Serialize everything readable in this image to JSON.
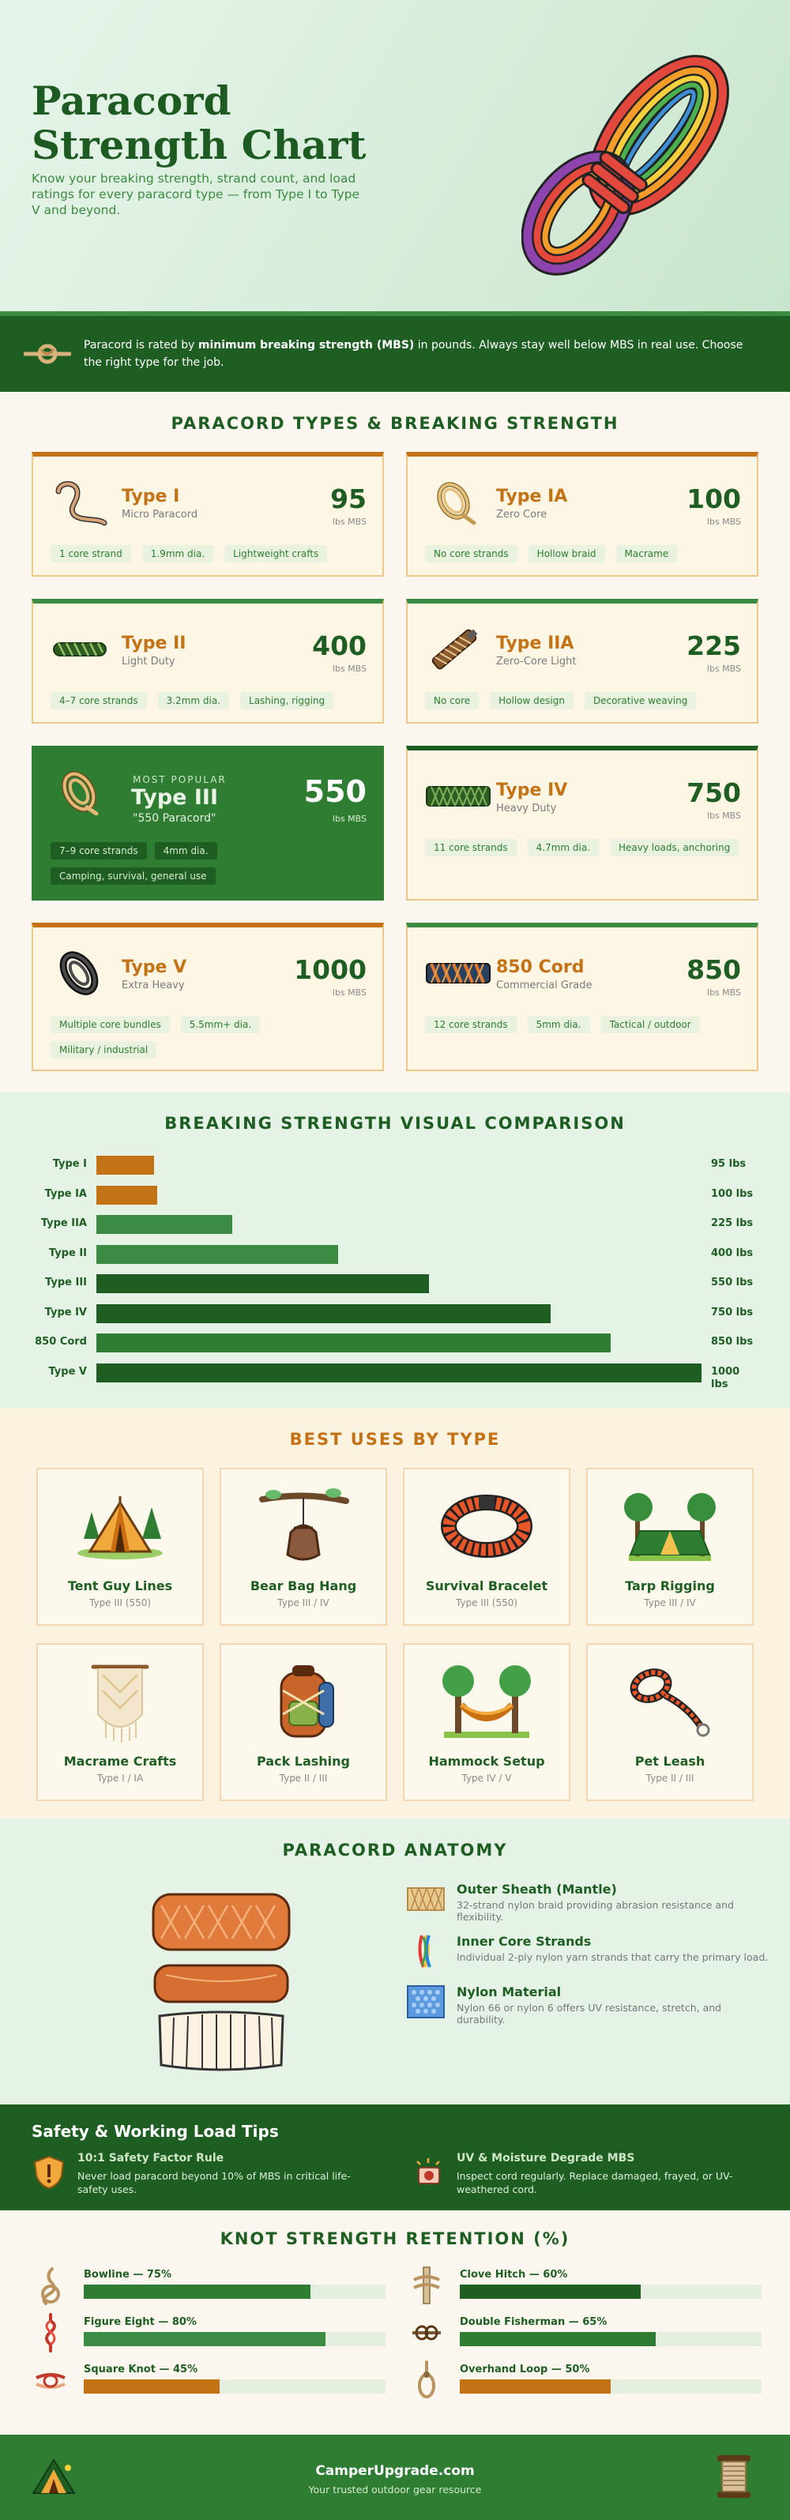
{
  "hero": {
    "title_line1": "Paracord",
    "title_line2": "Strength Chart",
    "subtitle": "Know your breaking strength, strand count, and load ratings for every paracord type — from Type I to Type V and beyond.",
    "art_icon": "coiled-rope-icon"
  },
  "info": {
    "icon": "knot-icon",
    "text_before": "Paracord is rated by ",
    "text_bold": "minimum breaking strength (MBS)",
    "text_after": " in pounds. Always stay well below MBS in real use. Choose the right type for the job."
  },
  "types": {
    "title": "PARACORD TYPES & BREAKING STRENGTH",
    "unit": "lbs MBS",
    "items": [
      {
        "name": "Type I",
        "desc": "Micro Paracord",
        "value": "95",
        "chips": [
          "1 core strand",
          "1.9mm dia.",
          "Lightweight crafts"
        ],
        "icon": "thin-cord-loop-icon"
      },
      {
        "name": "Type IA",
        "desc": "Zero Core",
        "value": "100",
        "chips": [
          "No core strands",
          "Hollow braid",
          "Macrame"
        ],
        "icon": "coiled-cord-icon"
      },
      {
        "name": "Type II",
        "desc": "Light Duty",
        "value": "400",
        "chips": [
          "4–7 core strands",
          "3.2mm dia.",
          "Lashing, rigging"
        ],
        "icon": "braided-cord-icon"
      },
      {
        "name": "Type IIA",
        "desc": "Zero-Core Light",
        "value": "225",
        "chips": [
          "No core",
          "Hollow design",
          "Decorative weaving"
        ],
        "icon": "wrapped-handle-icon"
      },
      {
        "name": "Type III",
        "label": "MOST POPULAR",
        "desc": "\"550 Paracord\"",
        "value": "550",
        "chips": [
          "7–9 core strands",
          "4mm dia.",
          "Camping, survival, general use"
        ],
        "icon": "coiled-cord-icon"
      },
      {
        "name": "Type IV",
        "desc": "Heavy Duty",
        "value": "750",
        "chips": [
          "11 core strands",
          "4.7mm dia.",
          "Heavy loads, anchoring"
        ],
        "icon": "braided-cord-icon"
      },
      {
        "name": "Type V",
        "desc": "Extra Heavy",
        "value": "1000",
        "chips": [
          "Multiple core bundles",
          "5.5mm+ dia.",
          "Military / industrial"
        ],
        "icon": "coiled-cord-icon"
      },
      {
        "name": "850 Cord",
        "desc": "Commercial Grade",
        "value": "850",
        "chips": [
          "12 core strands",
          "5mm dia.",
          "Tactical / outdoor"
        ],
        "icon": "braided-cord-icon"
      }
    ]
  },
  "comparison": {
    "title": "BREAKING STRENGTH VISUAL COMPARISON",
    "max": 1000,
    "rows": [
      {
        "label": "Type I",
        "value": 95,
        "text": "95 lbs",
        "color": "#c47216"
      },
      {
        "label": "Type IA",
        "value": 100,
        "text": "100 lbs",
        "color": "#c47216"
      },
      {
        "label": "Type IIA",
        "value": 225,
        "text": "225 lbs",
        "color": "#3c8b43"
      },
      {
        "label": "Type II",
        "value": 400,
        "text": "400 lbs",
        "color": "#3c8b43"
      },
      {
        "label": "Type III",
        "value": 550,
        "text": "550 lbs",
        "color": "#1f5e23"
      },
      {
        "label": "Type IV",
        "value": 750,
        "text": "750 lbs",
        "color": "#1f5e23"
      },
      {
        "label": "850 Cord",
        "value": 850,
        "text": "850 lbs",
        "color": "#2e7d32"
      },
      {
        "label": "Type V",
        "value": 1000,
        "text": "1000 lbs",
        "color": "#1f5e23"
      }
    ]
  },
  "uses": {
    "title": "BEST USES BY TYPE",
    "items": [
      {
        "name": "Tent Guy Lines",
        "type": "Type III (550)",
        "icon": "tent-icon"
      },
      {
        "name": "Bear Bag Hang",
        "type": "Type III / IV",
        "icon": "bear-bag-icon"
      },
      {
        "name": "Survival Bracelet",
        "type": "Type III (550)",
        "icon": "bracelet-icon"
      },
      {
        "name": "Tarp Rigging",
        "type": "Type III / IV",
        "icon": "tarp-icon"
      },
      {
        "name": "Macrame Crafts",
        "type": "Type I / IA",
        "icon": "macrame-icon"
      },
      {
        "name": "Pack Lashing",
        "type": "Type II / III",
        "icon": "backpack-icon"
      },
      {
        "name": "Hammock Setup",
        "type": "Type IV / V",
        "icon": "hammock-icon"
      },
      {
        "name": "Pet Leash",
        "type": "Type II / III",
        "icon": "leash-icon"
      }
    ]
  },
  "anatomy": {
    "title": "PARACORD ANATOMY",
    "art_icon": "cord-cross-section-icon",
    "items": [
      {
        "name": "Outer Sheath (Mantle)",
        "desc": "32-strand nylon braid providing abrasion resistance and flexibility.",
        "icon": "sheath-swatch-icon"
      },
      {
        "name": "Inner Core Strands",
        "desc": "Individual 2-ply nylon yarn strands that carry the primary load.",
        "icon": "core-strands-icon"
      },
      {
        "name": "Nylon Material",
        "desc": "Nylon 66 or nylon 6 offers UV resistance, stretch, and durability.",
        "icon": "nylon-weave-icon"
      }
    ]
  },
  "safety": {
    "title": "Safety & Working Load Tips",
    "tips": [
      {
        "name": "10:1 Safety Factor Rule",
        "desc": "Never load paracord beyond 10% of MBS in critical life-safety uses.",
        "icon": "shield-warning-icon"
      },
      {
        "name": "UV & Moisture Degrade MBS",
        "desc": "Inspect cord regularly. Replace damaged, frayed, or UV-weathered cord.",
        "icon": "sun-moisture-icon"
      }
    ]
  },
  "knots": {
    "title": "KNOT STRENGTH RETENTION (%)",
    "items": [
      {
        "label": "Bowline — 75%",
        "value": 75,
        "color": "#2e7d32",
        "icon": "bowline-knot-icon"
      },
      {
        "label": "Clove Hitch — 60%",
        "value": 60,
        "color": "#1f5e23",
        "icon": "clove-hitch-icon"
      },
      {
        "label": "Figure Eight — 80%",
        "value": 80,
        "color": "#3c8b43",
        "icon": "figure-eight-knot-icon"
      },
      {
        "label": "Double Fisherman — 65%",
        "value": 65,
        "color": "#2e7d32",
        "icon": "double-fisherman-knot-icon"
      },
      {
        "label": "Square Knot — 45%",
        "value": 45,
        "color": "#c47216",
        "icon": "square-knot-icon"
      },
      {
        "label": "Overhand Loop — 50%",
        "value": 50,
        "color": "#c47216",
        "icon": "overhand-loop-icon"
      }
    ]
  },
  "footer": {
    "site": "CamperUpgrade.com",
    "tagline": "Your trusted outdoor gear resource",
    "icon_left": "campsite-icon",
    "icon_right": "spool-icon"
  }
}
